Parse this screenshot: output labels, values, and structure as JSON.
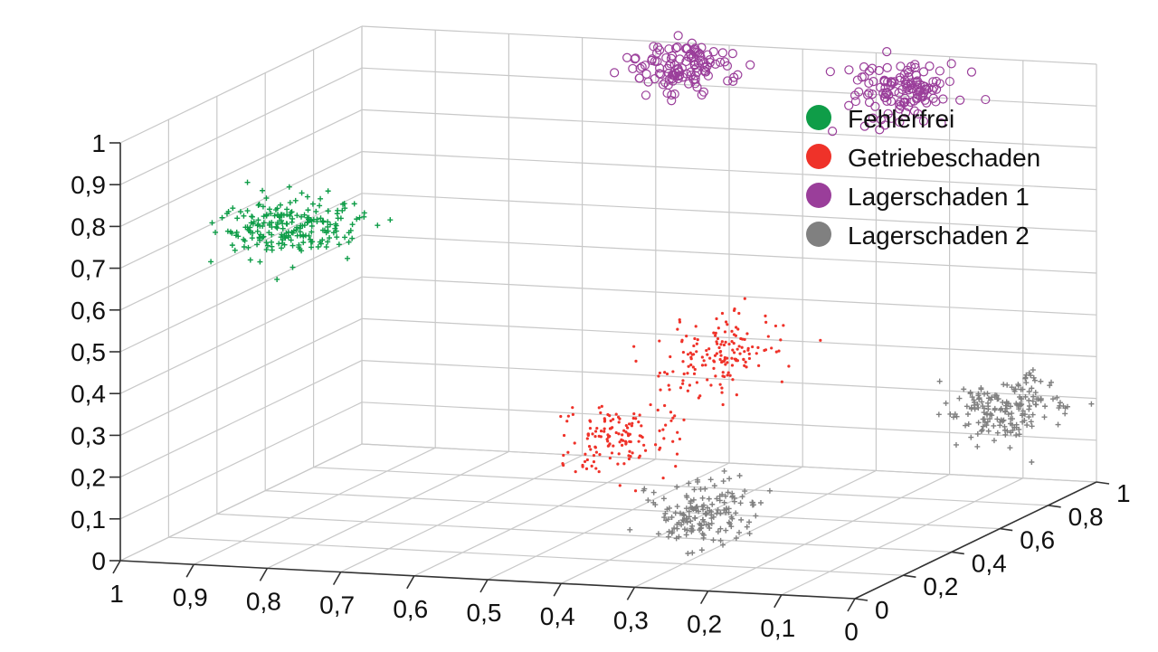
{
  "chart_data": {
    "type": "scatter",
    "title": "",
    "legend_position": "top-right",
    "grid": true,
    "axes": {
      "x": {
        "range": [
          0,
          1
        ],
        "ticks": [
          "1",
          "0,9",
          "0,8",
          "0,7",
          "0,6",
          "0,5",
          "0,4",
          "0,3",
          "0,2",
          "0,1",
          "0"
        ]
      },
      "y": {
        "range": [
          0,
          1
        ],
        "ticks": [
          "0",
          "0,2",
          "0,4",
          "0,6",
          "0,8",
          "1"
        ]
      },
      "z": {
        "range": [
          0,
          1
        ],
        "ticks": [
          "0",
          "0,1",
          "0,2",
          "0,3",
          "0,4",
          "0,5",
          "0,6",
          "0,7",
          "0,8",
          "0,9",
          "1"
        ]
      }
    },
    "series": [
      {
        "name": "Fehlerfrei",
        "color": "#0f9d48",
        "marker": "plus",
        "clusters": [
          {
            "x": 0.92,
            "y": 0.45,
            "z": 0.68,
            "points": 220
          }
        ]
      },
      {
        "name": "Getriebeschaden",
        "color": "#ef3229",
        "marker": "dot",
        "clusters": [
          {
            "x": 0.42,
            "y": 0.75,
            "z": 0.34,
            "points": 160
          },
          {
            "x": 0.46,
            "y": 0.42,
            "z": 0.22,
            "points": 140
          }
        ]
      },
      {
        "name": "Lagerschaden 1",
        "color": "#9a3e9a",
        "marker": "circle",
        "clusters": [
          {
            "x": 0.55,
            "y": 0.97,
            "z": 0.95,
            "points": 120
          },
          {
            "x": 0.25,
            "y": 0.95,
            "z": 0.93,
            "points": 130
          }
        ]
      },
      {
        "name": "Lagerschaden 2",
        "color": "#808080",
        "marker": "plus",
        "clusters": [
          {
            "x": 0.25,
            "y": 0.12,
            "z": 0.14,
            "points": 160
          },
          {
            "x": 0.05,
            "y": 0.78,
            "z": 0.23,
            "points": 180
          }
        ]
      }
    ]
  }
}
